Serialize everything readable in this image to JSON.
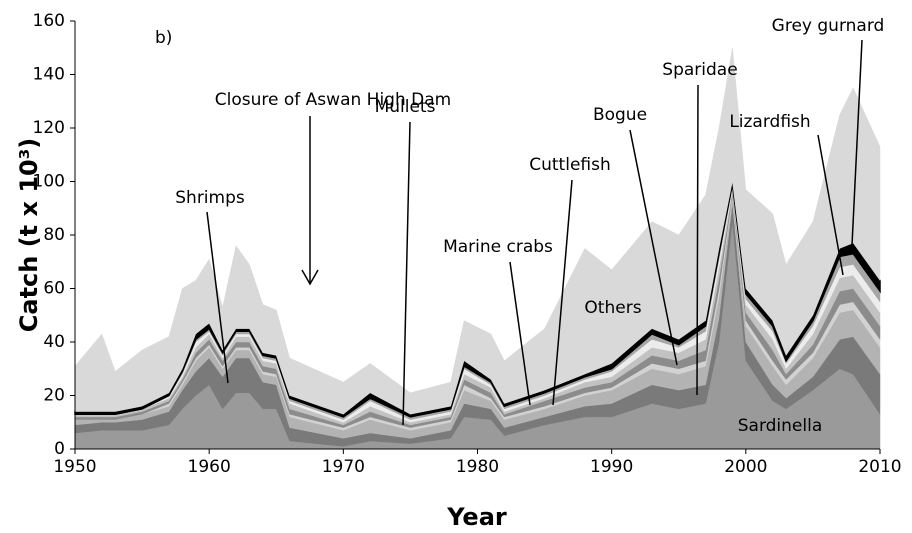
{
  "chart_data": {
    "type": "stacked_area",
    "panel_label": "b)",
    "x_label": "Year",
    "y_label": "Catch (t x 10³)",
    "annotations": [
      "Closure of Aswan High Dam"
    ],
    "x": [
      1950,
      1952,
      1953,
      1955,
      1957,
      1958,
      1959,
      1960,
      1961,
      1962,
      1963,
      1964,
      1965,
      1966,
      1970,
      1972,
      1975,
      1978,
      1979,
      1981,
      1982,
      1985,
      1988,
      1990,
      1993,
      1995,
      1997,
      1998,
      1999,
      2000,
      2002,
      2003,
      2005,
      2007,
      2008,
      2010
    ],
    "xlim": [
      1950,
      2010
    ],
    "xticks": [
      1950,
      1960,
      1970,
      1980,
      1990,
      2000,
      2010
    ],
    "ylim": [
      0,
      160
    ],
    "yticks": [
      0,
      20,
      40,
      60,
      80,
      100,
      120,
      140,
      160
    ],
    "series": [
      {
        "name": "Sardinella",
        "color": "#9a9a9a",
        "values": [
          6,
          7,
          7,
          7,
          9,
          15,
          20,
          24,
          15,
          21,
          21,
          15,
          15,
          3,
          1,
          3,
          2,
          4,
          12,
          11,
          5,
          9,
          12,
          12,
          17,
          15,
          17,
          40,
          85,
          33,
          18,
          15,
          22,
          30,
          28,
          13
        ]
      },
      {
        "name": "Shrimps",
        "color": "#7a7a7a",
        "values": [
          3,
          3,
          3,
          4,
          5,
          7,
          9,
          10,
          12,
          13,
          13,
          10,
          9,
          5,
          3,
          3,
          2,
          3,
          5,
          4,
          3,
          3,
          4,
          5,
          7,
          7,
          7,
          9,
          7,
          7,
          6,
          4,
          5,
          11,
          14,
          15
        ]
      },
      {
        "name": "Mullets",
        "color": "#b3b3b3",
        "values": [
          2,
          1,
          1,
          2,
          2,
          2,
          4,
          4,
          3,
          3,
          3,
          3,
          3,
          4,
          3,
          5,
          3,
          3,
          5,
          3,
          3,
          3,
          4,
          5,
          6,
          6,
          7,
          8,
          2,
          6,
          7,
          5,
          7,
          10,
          10,
          10
        ]
      },
      {
        "name": "Marine crabs",
        "color": "#d2d2d2",
        "values": [
          0,
          0,
          0,
          0,
          1,
          1,
          1,
          1,
          1,
          1,
          1,
          1,
          1,
          1,
          1,
          1,
          1,
          1,
          2,
          1,
          1,
          1,
          1,
          1,
          2,
          2,
          2,
          3,
          1,
          2,
          2,
          2,
          2,
          3,
          3,
          3
        ]
      },
      {
        "name": "Cuttlefish",
        "color": "#8c8c8c",
        "values": [
          1,
          1,
          1,
          1,
          1,
          1,
          2,
          2,
          2,
          2,
          2,
          2,
          2,
          2,
          1,
          2,
          1,
          1,
          2,
          2,
          1,
          2,
          2,
          2,
          3,
          3,
          4,
          4,
          1,
          3,
          4,
          2,
          3,
          5,
          5,
          5
        ]
      },
      {
        "name": "Bogue",
        "color": "#c2c2c2",
        "values": [
          1,
          1,
          1,
          1,
          1,
          1,
          2,
          2,
          1,
          2,
          2,
          2,
          2,
          2,
          1,
          2,
          1,
          1,
          2,
          2,
          1,
          1,
          2,
          2,
          3,
          3,
          4,
          4,
          1,
          3,
          4,
          2,
          4,
          5,
          5,
          5
        ]
      },
      {
        "name": "Sparidae",
        "color": "#ececec",
        "values": [
          0,
          0,
          0,
          0,
          1,
          1,
          2,
          1,
          1,
          1,
          1,
          1,
          1,
          1,
          1,
          2,
          1,
          1,
          2,
          1,
          1,
          1,
          1,
          2,
          3,
          2,
          3,
          3,
          1,
          2,
          3,
          2,
          3,
          4,
          4,
          4
        ]
      },
      {
        "name": "Lizardfish",
        "color": "#a6a6a6",
        "values": [
          0,
          0,
          0,
          0,
          0,
          1,
          1,
          1,
          1,
          1,
          1,
          1,
          1,
          1,
          1,
          1,
          1,
          1,
          1,
          1,
          1,
          1,
          1,
          1,
          2,
          1,
          2,
          2,
          1,
          2,
          2,
          1,
          2,
          4,
          4,
          4
        ]
      },
      {
        "name": "Grey gurnard",
        "color": "#000000",
        "values": [
          1,
          1,
          1,
          1,
          1,
          1,
          2,
          2,
          1,
          1,
          1,
          1,
          1,
          1,
          1,
          2,
          1,
          1,
          2,
          1,
          1,
          1,
          1,
          2,
          2,
          2,
          2,
          2,
          1,
          2,
          2,
          2,
          2,
          3,
          4,
          4
        ]
      },
      {
        "name": "Others",
        "color": "#d9d9d9",
        "values": [
          17,
          29,
          15,
          21,
          21,
          30,
          20,
          24,
          16,
          31,
          24,
          18,
          17,
          14,
          12,
          11,
          8,
          9,
          15,
          17,
          16,
          23,
          47,
          35,
          40,
          39,
          47,
          45,
          50,
          37,
          40,
          34,
          35,
          50,
          58,
          50
        ]
      }
    ]
  }
}
